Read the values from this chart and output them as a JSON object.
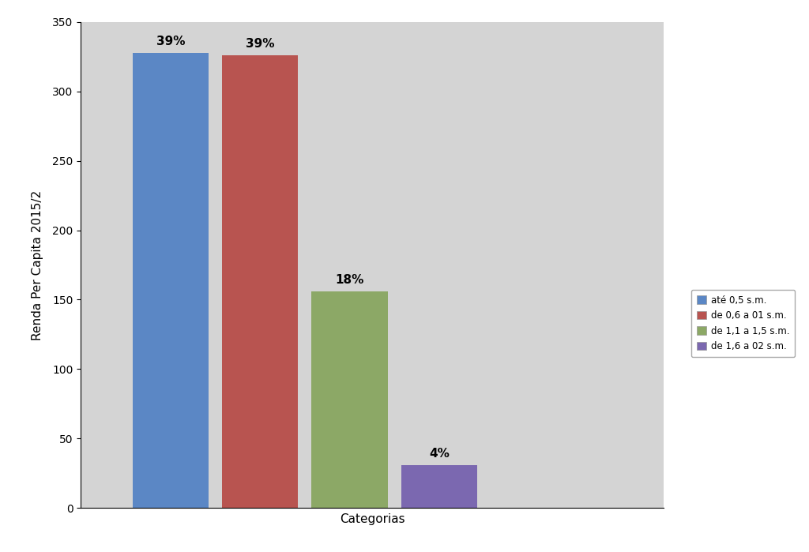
{
  "categories": [
    "até 0,5 s.m.",
    "de 0,6 a 01 s.m.",
    "de 1,1 a 1,5 s.m.",
    "de 1,6 a 02 s.m."
  ],
  "values": [
    328,
    326,
    156,
    31
  ],
  "labels": [
    "39%",
    "39%",
    "18%",
    "4%"
  ],
  "bar_colors": [
    "#5B87C5",
    "#B85450",
    "#8CA866",
    "#7B68B0"
  ],
  "xlabel": "Categorias",
  "ylabel": "Renda Per Capita 2015/2",
  "ylim": [
    0,
    350
  ],
  "yticks": [
    0,
    50,
    100,
    150,
    200,
    250,
    300,
    350
  ],
  "background_color": "#D4D4D4",
  "plot_bg_color": "#D4D4D4",
  "right_panel_color": "#FFFFFF",
  "legend_labels": [
    "até 0,5 s.m.",
    "de 0,6 a 01 s.m.",
    "de 1,1 a 1,5 s.m.",
    "de 1,6 a 02 s.m."
  ],
  "legend_colors": [
    "#5B87C5",
    "#B85450",
    "#8CA866",
    "#7B68B0"
  ],
  "bar_width": 0.85,
  "label_fontsize": 11,
  "axis_label_fontsize": 11,
  "tick_fontsize": 10,
  "x_positions": [
    1,
    2,
    3,
    4
  ],
  "xlim": [
    0,
    6.5
  ]
}
